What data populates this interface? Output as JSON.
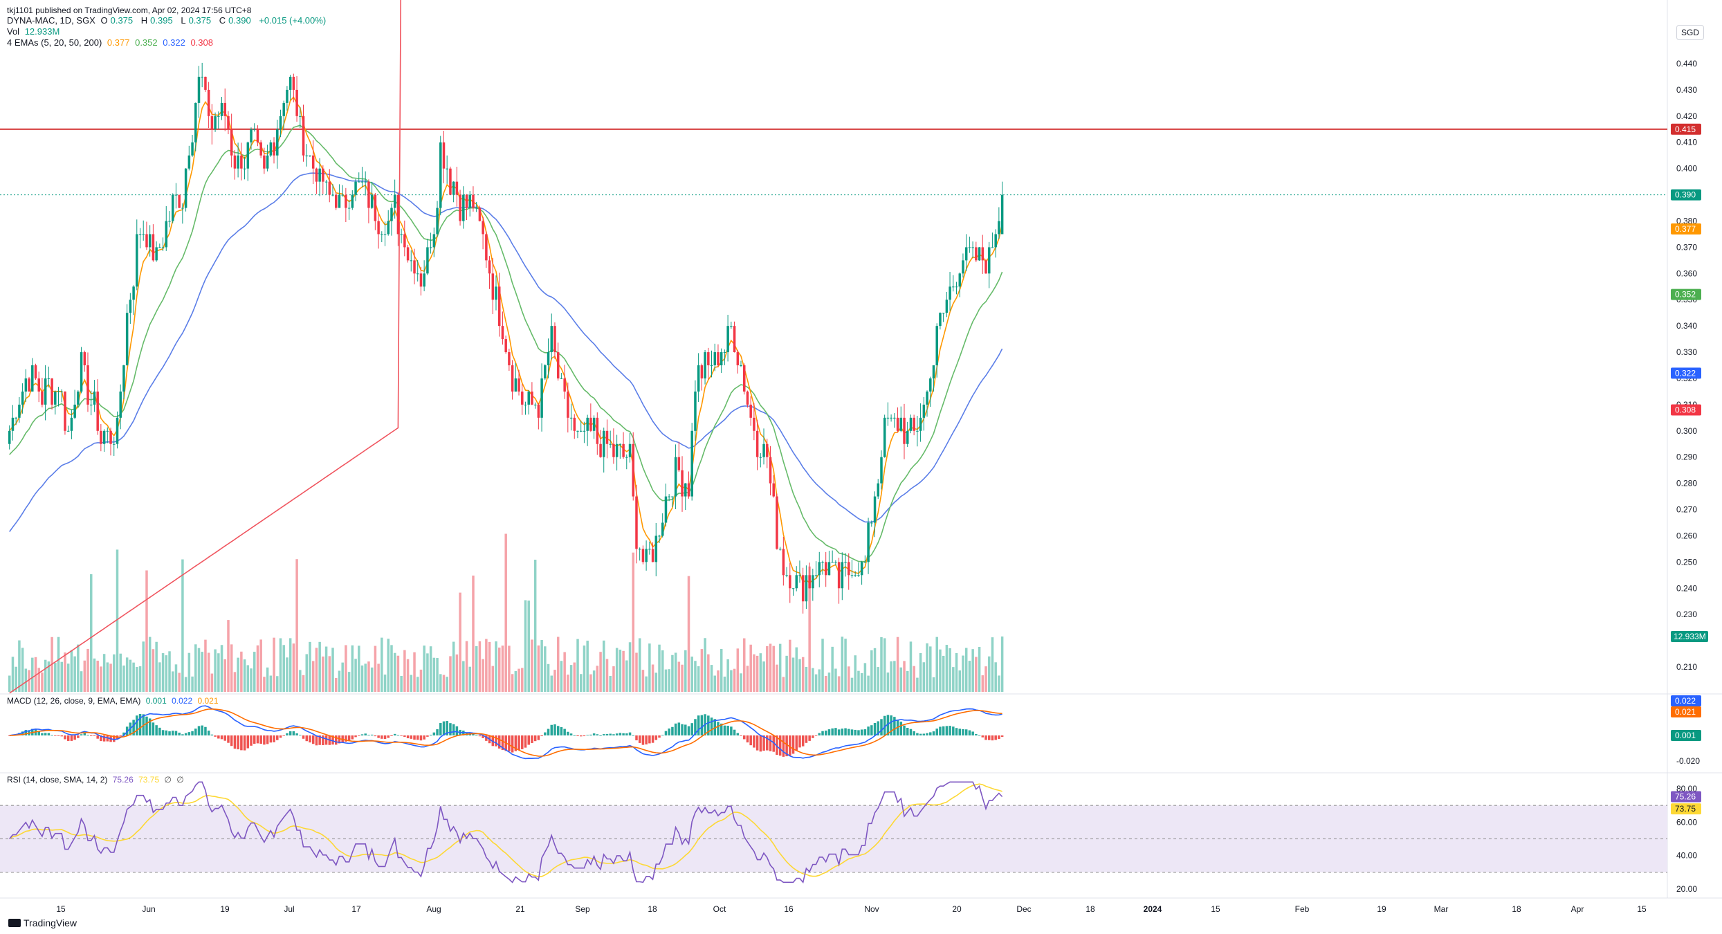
{
  "publisher_line": "tkj1101 published on TradingView.com, Apr 02, 2024 17:56 UTC+8",
  "currency": "SGD",
  "legend": {
    "symbol": "DYNA-MAC, 1D, SGX",
    "ohlc": {
      "o_label": "O",
      "o": "0.375",
      "h_label": "H",
      "h": "0.395",
      "l_label": "L",
      "l": "0.375",
      "c_label": "C",
      "c": "0.390",
      "chg": "+0.015 (+4.00%)"
    },
    "vol_label": "Vol",
    "vol": "12.933M",
    "ema_label": "4 EMAs (5, 20, 50, 200)",
    "ema_values": [
      "0.377",
      "0.352",
      "0.322",
      "0.308"
    ],
    "macd_label": "MACD (12, 26, close, 9, EMA, EMA)",
    "macd_values": [
      "0.001",
      "0.022",
      "0.021"
    ],
    "rsi_label": "RSI (14, close, SMA, 14, 2)",
    "rsi_values": [
      "75.26",
      "73.75",
      "∅",
      "∅"
    ]
  },
  "footer_brand": "TradingView",
  "colors": {
    "up": "#089981",
    "down": "#f23645",
    "ema5": "#ff9800",
    "ema20": "#66bb6a",
    "ema50": "#5b7ee8",
    "ema200": "#f0555f",
    "hline": "#d32f2f",
    "macd": "#2962ff",
    "signal": "#ff6d00",
    "rsi": "#7e57c2",
    "rsi_ma": "#fdd835"
  },
  "chart_data": [
    {
      "type": "candlestick",
      "title": "DYNA-MAC, 1D, SGX",
      "ylim": [
        0.2,
        0.45
      ],
      "y_ticks": [
        "0.210",
        "0.230",
        "0.240",
        "0.250",
        "0.260",
        "0.270",
        "0.280",
        "0.290",
        "0.300",
        "0.310",
        "0.320",
        "0.330",
        "0.340",
        "0.350",
        "0.360",
        "0.370",
        "0.380",
        "0.390",
        "0.400",
        "0.410",
        "0.420",
        "0.430",
        "0.440"
      ],
      "x_ticks": [
        "15",
        "Jun",
        "19",
        "Jul",
        "17",
        "Aug",
        "21",
        "Sep",
        "18",
        "Oct",
        "16",
        "Nov",
        "20",
        "Dec",
        "18",
        "2024",
        "15",
        "Feb",
        "19",
        "Mar",
        "18",
        "Apr",
        "15"
      ],
      "horizontal_line": 0.415,
      "price_labels": [
        {
          "value": 0.415,
          "text": "0.415",
          "color": "#d32f2f"
        },
        {
          "value": 0.39,
          "text": "0.390",
          "color": "#089981"
        },
        {
          "value": 0.377,
          "text": "0.377",
          "color": "#ff9800"
        },
        {
          "value": 0.352,
          "text": "0.352",
          "color": "#4caf50"
        },
        {
          "value": 0.322,
          "text": "0.322",
          "color": "#2962ff"
        },
        {
          "value": 0.308,
          "text": "0.308",
          "color": "#f23645"
        }
      ],
      "close_profile": [
        [
          0,
          0.3
        ],
        [
          5,
          0.32
        ],
        [
          10,
          0.315
        ],
        [
          15,
          0.318
        ],
        [
          18,
          0.3
        ],
        [
          22,
          0.325
        ],
        [
          25,
          0.312
        ],
        [
          28,
          0.298
        ],
        [
          33,
          0.3
        ],
        [
          36,
          0.345
        ],
        [
          40,
          0.378
        ],
        [
          45,
          0.365
        ],
        [
          50,
          0.385
        ],
        [
          53,
          0.39
        ],
        [
          58,
          0.435
        ],
        [
          62,
          0.418
        ],
        [
          66,
          0.42
        ],
        [
          70,
          0.4
        ],
        [
          74,
          0.41
        ],
        [
          78,
          0.398
        ],
        [
          82,
          0.418
        ],
        [
          86,
          0.435
        ],
        [
          90,
          0.41
        ],
        [
          94,
          0.398
        ],
        [
          98,
          0.39
        ],
        [
          102,
          0.385
        ],
        [
          106,
          0.395
        ],
        [
          110,
          0.39
        ],
        [
          114,
          0.378
        ],
        [
          118,
          0.385
        ],
        [
          122,
          0.37
        ],
        [
          126,
          0.36
        ],
        [
          130,
          0.378
        ],
        [
          132,
          0.408
        ],
        [
          134,
          0.4
        ],
        [
          138,
          0.388
        ],
        [
          142,
          0.385
        ],
        [
          146,
          0.37
        ],
        [
          150,
          0.345
        ],
        [
          154,
          0.32
        ],
        [
          158,
          0.31
        ],
        [
          162,
          0.31
        ],
        [
          166,
          0.335
        ],
        [
          170,
          0.31
        ],
        [
          174,
          0.296
        ],
        [
          178,
          0.3
        ],
        [
          182,
          0.295
        ],
        [
          186,
          0.29
        ],
        [
          190,
          0.288
        ],
        [
          192,
          0.26
        ],
        [
          195,
          0.248
        ],
        [
          198,
          0.258
        ],
        [
          200,
          0.27
        ],
        [
          204,
          0.285
        ],
        [
          208,
          0.28
        ],
        [
          210,
          0.32
        ],
        [
          214,
          0.325
        ],
        [
          218,
          0.33
        ],
        [
          221,
          0.338
        ],
        [
          224,
          0.325
        ],
        [
          228,
          0.3
        ],
        [
          232,
          0.29
        ],
        [
          235,
          0.26
        ],
        [
          238,
          0.245
        ],
        [
          242,
          0.24
        ],
        [
          246,
          0.245
        ],
        [
          250,
          0.25
        ],
        [
          254,
          0.242
        ],
        [
          258,
          0.248
        ],
        [
          262,
          0.25
        ],
        [
          264,
          0.268
        ],
        [
          268,
          0.3
        ],
        [
          272,
          0.305
        ],
        [
          276,
          0.298
        ],
        [
          280,
          0.31
        ],
        [
          284,
          0.335
        ],
        [
          288,
          0.355
        ],
        [
          292,
          0.365
        ],
        [
          296,
          0.368
        ],
        [
          300,
          0.367
        ],
        [
          304,
          0.39
        ]
      ],
      "overlays": [
        {
          "name": "EMA 5",
          "last": 0.377
        },
        {
          "name": "EMA 20",
          "last": 0.352
        },
        {
          "name": "EMA 50",
          "last": 0.322
        },
        {
          "name": "EMA 200",
          "last": 0.308
        }
      ]
    },
    {
      "type": "bar",
      "title": "Vol",
      "last_value": "12.933M",
      "last_value_m": 12.933
    },
    {
      "type": "line",
      "title": "MACD (12, 26, close, 9, EMA, EMA)",
      "y_ticks": [
        "0.001",
        "0.021",
        "0.022",
        "-0.020"
      ],
      "last": {
        "histogram": 0.001,
        "macd": 0.022,
        "signal": 0.021
      }
    },
    {
      "type": "line",
      "title": "RSI (14, close, SMA, 14, 2)",
      "ylim": [
        20,
        80
      ],
      "y_ticks": [
        "80.00",
        "60.00",
        "40.00",
        "20.00"
      ],
      "bands": [
        30,
        70
      ],
      "last": {
        "rsi": 75.26,
        "rsi_ma": 73.75
      },
      "value_labels": [
        "75.26",
        "73.75"
      ]
    }
  ]
}
